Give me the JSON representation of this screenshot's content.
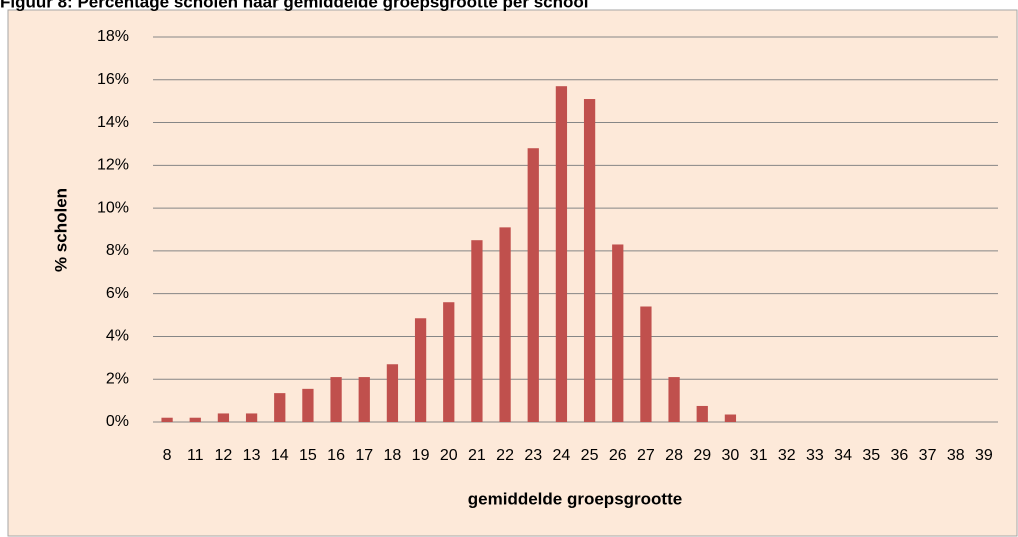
{
  "chart_data": {
    "type": "bar",
    "title": "Figuur 8: Percentage scholen naar gemiddelde groepsgrootte per school",
    "categories": [
      "8",
      "11",
      "12",
      "13",
      "14",
      "15",
      "16",
      "17",
      "18",
      "19",
      "20",
      "21",
      "22",
      "23",
      "24",
      "25",
      "26",
      "27",
      "28",
      "29",
      "30",
      "31",
      "32",
      "33",
      "34",
      "35",
      "36",
      "37",
      "38",
      "39"
    ],
    "values": [
      0.2,
      0.2,
      0.4,
      0.4,
      1.35,
      1.55,
      2.1,
      2.1,
      2.7,
      4.85,
      5.6,
      8.5,
      9.1,
      12.8,
      15.7,
      15.1,
      8.3,
      5.4,
      2.1,
      0.75,
      0.35,
      0,
      0,
      0,
      0,
      0,
      0,
      0,
      0,
      0
    ],
    "color": "#c0504d",
    "xlabel": "gemiddelde groepsgrootte",
    "ylabel": "% scholen",
    "ylim": [
      0,
      18
    ],
    "yticks": [
      {
        "value": 0,
        "label": "0%"
      },
      {
        "value": 2,
        "label": "2%"
      },
      {
        "value": 4,
        "label": "4%"
      },
      {
        "value": 6,
        "label": "6%"
      },
      {
        "value": 8,
        "label": "8%"
      },
      {
        "value": 10,
        "label": "10%"
      },
      {
        "value": 12,
        "label": "12%"
      },
      {
        "value": 14,
        "label": "14%"
      },
      {
        "value": 16,
        "label": "16%"
      },
      {
        "value": 18,
        "label": "18%"
      }
    ],
    "grid": true
  }
}
